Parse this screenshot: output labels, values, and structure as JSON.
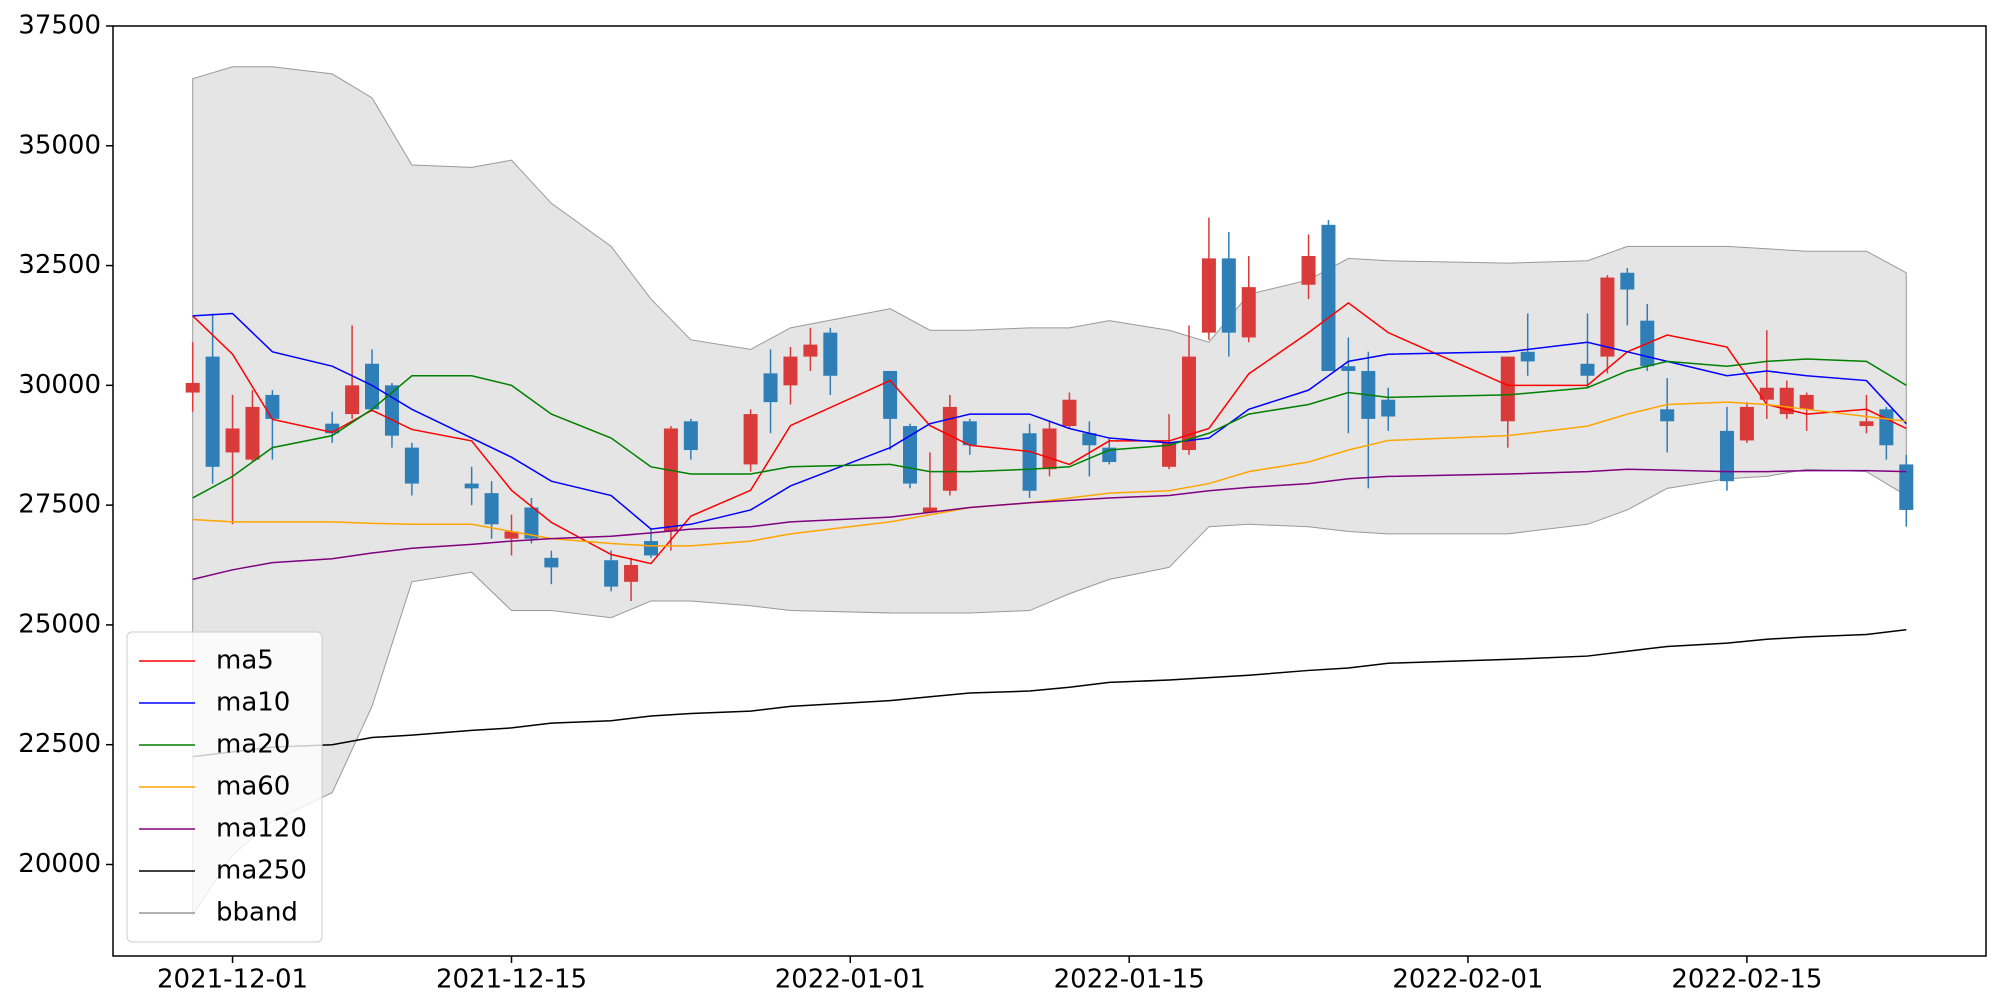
{
  "chart_data": {
    "type": "candlestick",
    "x": [
      "2021-11-29",
      "2021-11-30",
      "2021-12-01",
      "2021-12-02",
      "2021-12-03",
      "2021-12-06",
      "2021-12-07",
      "2021-12-08",
      "2021-12-09",
      "2021-12-10",
      "2021-12-13",
      "2021-12-14",
      "2021-12-15",
      "2021-12-16",
      "2021-12-17",
      "2021-12-20",
      "2021-12-21",
      "2021-12-22",
      "2021-12-23",
      "2021-12-24",
      "2021-12-27",
      "2021-12-28",
      "2021-12-29",
      "2021-12-30",
      "2021-12-31",
      "2022-01-03",
      "2022-01-04",
      "2022-01-05",
      "2022-01-06",
      "2022-01-07",
      "2022-01-10",
      "2022-01-11",
      "2022-01-12",
      "2022-01-13",
      "2022-01-14",
      "2022-01-17",
      "2022-01-18",
      "2022-01-19",
      "2022-01-20",
      "2022-01-21",
      "2022-01-24",
      "2022-01-25",
      "2022-01-26",
      "2022-01-27",
      "2022-01-28",
      "2022-02-03",
      "2022-02-04",
      "2022-02-07",
      "2022-02-08",
      "2022-02-09",
      "2022-02-10",
      "2022-02-11",
      "2022-02-14",
      "2022-02-15",
      "2022-02-16",
      "2022-02-17",
      "2022-02-18",
      "2022-02-21",
      "2022-02-22",
      "2022-02-23"
    ],
    "open": [
      29850,
      30600,
      28600,
      28450,
      29800,
      29200,
      29400,
      30450,
      30000,
      28700,
      27950,
      27750,
      26800,
      27450,
      26400,
      26350,
      25900,
      26750,
      26950,
      29250,
      28350,
      30250,
      30000,
      30600,
      31100,
      30300,
      29150,
      27350,
      27800,
      29250,
      29000,
      28250,
      29150,
      29000,
      28700,
      28300,
      28650,
      31100,
      32650,
      31000,
      32100,
      33350,
      30400,
      30300,
      29700,
      29250,
      30700,
      30450,
      30600,
      32350,
      31350,
      29500,
      29050,
      28850,
      29700,
      29400,
      29500,
      29150,
      29500,
      28350
    ],
    "high": [
      30900,
      31500,
      29800,
      29900,
      29900,
      29450,
      31250,
      30750,
      30050,
      28800,
      28300,
      28000,
      27300,
      27650,
      26550,
      26550,
      26400,
      27000,
      29150,
      29300,
      29500,
      30750,
      30800,
      31200,
      31200,
      30300,
      29200,
      28600,
      29800,
      29300,
      29200,
      29250,
      29850,
      29250,
      28900,
      29400,
      31250,
      33500,
      33200,
      32700,
      33150,
      33450,
      31000,
      30700,
      29950,
      30600,
      31500,
      31500,
      32300,
      32450,
      31700,
      30150,
      29550,
      29650,
      31150,
      30100,
      29850,
      29800,
      29550,
      28550
    ],
    "low": [
      29450,
      27950,
      27100,
      28400,
      28450,
      28800,
      29300,
      29450,
      28700,
      27700,
      27500,
      26800,
      26450,
      26700,
      25850,
      25700,
      25500,
      26400,
      26550,
      28450,
      28200,
      29000,
      29600,
      30300,
      29800,
      28650,
      27850,
      27350,
      27700,
      28550,
      27650,
      28100,
      29100,
      28100,
      28350,
      28250,
      28550,
      30950,
      30600,
      30900,
      31800,
      30300,
      29000,
      27850,
      29050,
      28700,
      30200,
      29950,
      30250,
      31250,
      30300,
      28600,
      27800,
      28800,
      29300,
      29300,
      29050,
      29000,
      28450,
      27050
    ],
    "close": [
      30050,
      28300,
      29100,
      29550,
      29300,
      29000,
      30000,
      29500,
      28950,
      27950,
      27850,
      27100,
      26950,
      26800,
      26200,
      25800,
      26250,
      26450,
      29100,
      28650,
      29400,
      29650,
      30600,
      30850,
      30200,
      29300,
      27950,
      27450,
      29550,
      28750,
      27800,
      29100,
      29700,
      28750,
      28400,
      28800,
      30600,
      32650,
      31100,
      32050,
      32700,
      30300,
      30300,
      29300,
      29350,
      30600,
      30500,
      30200,
      32250,
      32000,
      30400,
      29250,
      28000,
      29550,
      29950,
      29950,
      29800,
      29250,
      28750,
      27400
    ],
    "up_color": "#d93a3a",
    "down_color": "#2e7eb8",
    "lines": {
      "x": [
        "2021-11-29",
        "2021-12-01",
        "2021-12-03",
        "2021-12-06",
        "2021-12-08",
        "2021-12-10",
        "2021-12-13",
        "2021-12-15",
        "2021-12-17",
        "2021-12-20",
        "2021-12-22",
        "2021-12-24",
        "2021-12-27",
        "2021-12-29",
        "2022-01-03",
        "2022-01-05",
        "2022-01-07",
        "2022-01-10",
        "2022-01-12",
        "2022-01-14",
        "2022-01-17",
        "2022-01-19",
        "2022-01-21",
        "2022-01-24",
        "2022-01-26",
        "2022-01-28",
        "2022-02-03",
        "2022-02-07",
        "2022-02-09",
        "2022-02-11",
        "2022-02-14",
        "2022-02-16",
        "2022-02-18",
        "2022-02-21",
        "2022-02-23"
      ],
      "series": [
        {
          "name": "ma5",
          "color": "#ff0000",
          "values": [
            31450,
            30650,
            29290,
            29020,
            29480,
            29080,
            28840,
            27810,
            27140,
            26470,
            26280,
            27270,
            27810,
            29160,
            30100,
            29160,
            28750,
            28620,
            28350,
            28840,
            28840,
            29100,
            30240,
            31100,
            31720,
            31100,
            30000,
            30000,
            30700,
            31050,
            30800,
            29600,
            29400,
            29500,
            29100
          ]
        },
        {
          "name": "ma10",
          "color": "#0000ff",
          "values": [
            31450,
            31500,
            30700,
            30400,
            30000,
            29500,
            28900,
            28500,
            28000,
            27700,
            27000,
            27100,
            27400,
            27900,
            28700,
            29200,
            29400,
            29400,
            29100,
            28900,
            28800,
            28900,
            29500,
            29900,
            30500,
            30650,
            30700,
            30900,
            30700,
            30500,
            30200,
            30300,
            30200,
            30100,
            29200
          ]
        },
        {
          "name": "ma20",
          "color": "#008000",
          "values": [
            27650,
            28100,
            28700,
            28950,
            29500,
            30200,
            30200,
            30000,
            29400,
            28900,
            28300,
            28150,
            28150,
            28300,
            28350,
            28200,
            28200,
            28250,
            28300,
            28650,
            28750,
            29000,
            29400,
            29600,
            29850,
            29750,
            29800,
            29950,
            30300,
            30500,
            30400,
            30500,
            30550,
            30500,
            30000
          ]
        },
        {
          "name": "ma60",
          "color": "#ffa500",
          "values": [
            27200,
            27150,
            27150,
            27150,
            27120,
            27100,
            27100,
            26950,
            26800,
            26700,
            26650,
            26650,
            26750,
            26900,
            27150,
            27300,
            27450,
            27550,
            27650,
            27750,
            27800,
            27950,
            28200,
            28400,
            28650,
            28850,
            28950,
            29150,
            29400,
            29600,
            29650,
            29600,
            29500,
            29350,
            29250
          ]
        },
        {
          "name": "ma120",
          "color": "#800080",
          "values": [
            25950,
            26150,
            26300,
            26380,
            26500,
            26600,
            26680,
            26750,
            26800,
            26850,
            26920,
            27000,
            27050,
            27150,
            27250,
            27350,
            27450,
            27550,
            27600,
            27650,
            27700,
            27800,
            27870,
            27950,
            28050,
            28100,
            28150,
            28200,
            28250,
            28230,
            28200,
            28200,
            28220,
            28220,
            28200
          ]
        },
        {
          "name": "ma250",
          "color": "#000000",
          "values": [
            22250,
            22350,
            22450,
            22500,
            22650,
            22700,
            22800,
            22850,
            22950,
            23000,
            23100,
            23150,
            23200,
            23300,
            23420,
            23500,
            23580,
            23620,
            23700,
            23800,
            23850,
            23900,
            23950,
            24050,
            24100,
            24200,
            24280,
            24350,
            24450,
            24550,
            24620,
            24700,
            24750,
            24800,
            24900
          ]
        }
      ],
      "band": {
        "name": "bband",
        "color": "#999999",
        "fill": "#e5e5e5",
        "upper": [
          36400,
          36650,
          36650,
          36500,
          36000,
          34600,
          34550,
          34700,
          33800,
          32900,
          31800,
          30950,
          30750,
          31200,
          31600,
          31150,
          31150,
          31200,
          31200,
          31350,
          31150,
          30900,
          31900,
          32200,
          32650,
          32600,
          32550,
          32600,
          32900,
          32900,
          32900,
          32850,
          32800,
          32800,
          32350
        ],
        "lower": [
          18950,
          20200,
          20900,
          21500,
          23300,
          25900,
          26100,
          25300,
          25300,
          25150,
          25500,
          25500,
          25400,
          25300,
          25250,
          25250,
          25250,
          25300,
          25650,
          25950,
          26200,
          27050,
          27100,
          27050,
          26950,
          26900,
          26900,
          27100,
          27400,
          27850,
          28050,
          28100,
          28250,
          28200,
          27700
        ]
      }
    },
    "xlim": [
      "2021-11-25",
      "2022-02-27"
    ],
    "xticks": [
      "2021-12-01",
      "2021-12-15",
      "2022-01-01",
      "2022-01-15",
      "2022-02-01",
      "2022-02-15"
    ],
    "ylim": [
      18090,
      37500
    ],
    "yticks": [
      20000,
      22500,
      25000,
      27500,
      30000,
      32500,
      35000,
      37500
    ],
    "legend": "lower left"
  }
}
